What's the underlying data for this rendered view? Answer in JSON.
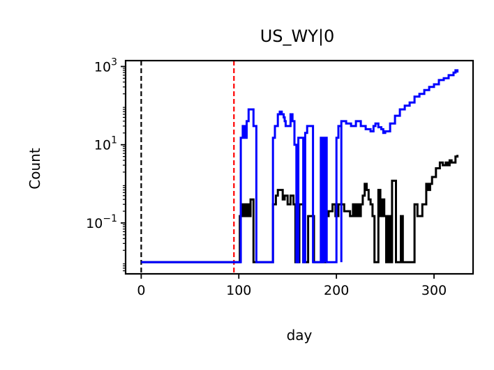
{
  "chart_data": {
    "type": "line",
    "title": "US_WY|0",
    "xlabel": "day",
    "ylabel": "Count",
    "xlim": [
      -16,
      340
    ],
    "ylim_log10": [
      -2.3,
      3.15
    ],
    "yscale": "log",
    "x_ticks": [
      0,
      100,
      200,
      300
    ],
    "y_ticks": [
      {
        "base": "10",
        "exp": "3",
        "value": 1000
      },
      {
        "base": "10",
        "exp": "1",
        "value": 10
      },
      {
        "base": "10",
        "exp": "−1",
        "value": 0.1
      }
    ],
    "vlines": [
      {
        "x": 0,
        "color": "#000000",
        "style": "dashed"
      },
      {
        "x": 95,
        "color": "#ff0000",
        "style": "dashed"
      }
    ],
    "series": [
      {
        "color": "#000000",
        "points": [
          [
            0,
            0.01
          ],
          [
            100,
            0.01
          ],
          [
            101,
            0.15
          ],
          [
            104,
            0.3
          ],
          [
            106,
            0.15
          ],
          [
            108,
            0.3
          ],
          [
            110,
            0.15
          ],
          [
            112,
            0.4
          ],
          [
            115,
            0.01
          ],
          [
            120,
            0.01
          ],
          [
            126,
            0.01
          ],
          [
            133,
            0.01
          ],
          [
            135,
            0.3
          ],
          [
            138,
            0.5
          ],
          [
            140,
            0.7
          ],
          [
            142,
            0.7
          ],
          [
            145,
            0.4
          ],
          [
            147,
            0.5
          ],
          [
            150,
            0.3
          ],
          [
            153,
            0.5
          ],
          [
            156,
            0.3
          ],
          [
            158,
            0.01
          ],
          [
            160,
            0.01
          ],
          [
            162,
            0.3
          ],
          [
            164,
            0.3
          ],
          [
            166,
            0.01
          ],
          [
            169,
            0.01
          ],
          [
            171,
            0.15
          ],
          [
            175,
            0.15
          ],
          [
            177,
            0.01
          ],
          [
            181,
            0.01
          ],
          [
            183,
            0.01
          ],
          [
            187,
            0.01
          ],
          [
            189,
            0.15
          ],
          [
            192,
            0.2
          ],
          [
            196,
            0.3
          ],
          [
            199,
            0.15
          ],
          [
            202,
            0.3
          ],
          [
            205,
            0.3
          ],
          [
            208,
            0.2
          ],
          [
            211,
            0.2
          ],
          [
            214,
            0.15
          ],
          [
            217,
            0.3
          ],
          [
            219,
            0.15
          ],
          [
            221,
            0.3
          ],
          [
            223,
            0.15
          ],
          [
            225,
            0.3
          ],
          [
            227,
            0.5
          ],
          [
            229,
            1.0
          ],
          [
            231,
            0.7
          ],
          [
            233,
            0.4
          ],
          [
            235,
            0.3
          ],
          [
            237,
            0.15
          ],
          [
            239,
            0.01
          ],
          [
            241,
            0.01
          ],
          [
            243,
            0.7
          ],
          [
            245,
            0.15
          ],
          [
            247,
            0.4
          ],
          [
            249,
            0.15
          ],
          [
            251,
            0.01
          ],
          [
            253,
            0.15
          ],
          [
            255,
            0.01
          ],
          [
            257,
            1.2
          ],
          [
            259,
            1.2
          ],
          [
            261,
            0.01
          ],
          [
            264,
            0.01
          ],
          [
            266,
            0.15
          ],
          [
            268,
            0.01
          ],
          [
            270,
            0.01
          ],
          [
            273,
            0.01
          ],
          [
            275,
            0.01
          ],
          [
            278,
            0.01
          ],
          [
            280,
            0.3
          ],
          [
            282,
            0.3
          ],
          [
            283,
            0.15
          ],
          [
            286,
            0.15
          ],
          [
            288,
            0.3
          ],
          [
            290,
            0.3
          ],
          [
            292,
            1.0
          ],
          [
            294,
            0.7
          ],
          [
            296,
            1.0
          ],
          [
            298,
            1.5
          ],
          [
            300,
            1.5
          ],
          [
            302,
            2.5
          ],
          [
            304,
            2.5
          ],
          [
            306,
            3.5
          ],
          [
            309,
            3.0
          ],
          [
            312,
            3.5
          ],
          [
            314,
            3.0
          ],
          [
            316,
            4.0
          ],
          [
            318,
            3.5
          ],
          [
            320,
            3.5
          ],
          [
            322,
            5.0
          ],
          [
            324,
            5.5
          ]
        ]
      },
      {
        "color": "#0000ff",
        "points": [
          [
            0,
            0.01
          ],
          [
            100,
            0.01
          ],
          [
            102,
            15
          ],
          [
            104,
            30
          ],
          [
            106,
            15
          ],
          [
            108,
            40
          ],
          [
            110,
            80
          ],
          [
            113,
            80
          ],
          [
            115,
            30
          ],
          [
            118,
            0.01
          ],
          [
            120,
            0.01
          ],
          [
            133,
            0.01
          ],
          [
            135,
            15
          ],
          [
            137,
            30
          ],
          [
            140,
            60
          ],
          [
            142,
            70
          ],
          [
            144,
            60
          ],
          [
            146,
            50
          ],
          [
            147,
            40
          ],
          [
            148,
            30
          ],
          [
            150,
            30
          ],
          [
            153,
            60
          ],
          [
            155,
            40
          ],
          [
            157,
            10
          ],
          [
            159,
            0.01
          ],
          [
            161,
            15
          ],
          [
            163,
            15
          ],
          [
            164,
            15
          ],
          [
            166,
            0.01
          ],
          [
            167,
            0.01
          ],
          [
            168,
            20
          ],
          [
            170,
            30
          ],
          [
            174,
            30
          ],
          [
            176,
            0.01
          ],
          [
            178,
            0.01
          ],
          [
            180,
            0.01
          ],
          [
            184,
            15
          ],
          [
            187,
            15
          ],
          [
            189,
            0.01
          ],
          [
            190,
            0.01
          ],
          [
            192,
            0.01
          ],
          [
            196,
            0.01
          ],
          [
            200,
            0.01
          ],
          [
            205,
            0.01
          ],
          [
            186,
            0.01
          ],
          [
            188,
            15
          ],
          [
            189,
            15
          ],
          [
            191,
            0.01
          ],
          [
            193,
            0.01
          ],
          [
            199,
            0.01
          ],
          [
            200,
            15
          ],
          [
            202,
            30
          ],
          [
            205,
            40
          ],
          [
            210,
            35
          ],
          [
            215,
            30
          ],
          [
            220,
            40
          ],
          [
            225,
            30
          ],
          [
            230,
            25
          ],
          [
            235,
            22
          ],
          [
            238,
            30
          ],
          [
            240,
            35
          ],
          [
            243,
            28
          ],
          [
            246,
            25
          ],
          [
            248,
            20
          ],
          [
            250,
            22
          ],
          [
            255,
            35
          ],
          [
            260,
            55
          ],
          [
            265,
            80
          ],
          [
            270,
            100
          ],
          [
            275,
            120
          ],
          [
            280,
            170
          ],
          [
            285,
            200
          ],
          [
            290,
            250
          ],
          [
            295,
            300
          ],
          [
            300,
            350
          ],
          [
            305,
            450
          ],
          [
            310,
            500
          ],
          [
            315,
            600
          ],
          [
            320,
            700
          ],
          [
            322,
            800
          ],
          [
            324,
            700
          ]
        ]
      }
    ],
    "grid": false,
    "legend": "none"
  }
}
